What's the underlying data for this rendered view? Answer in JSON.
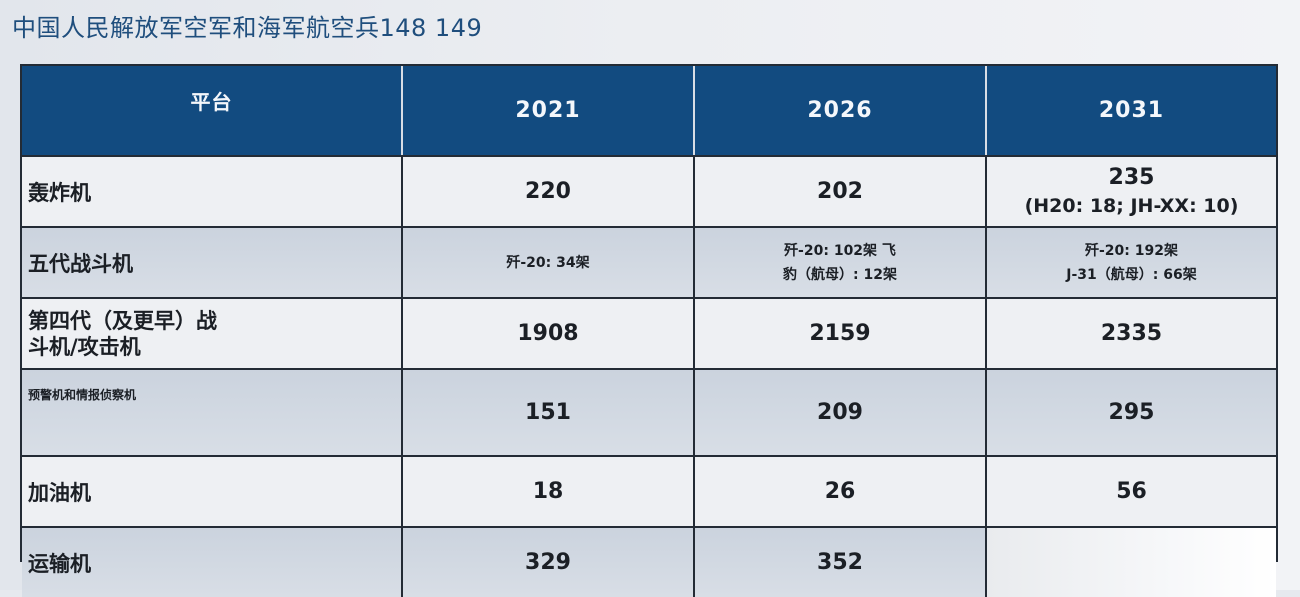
{
  "title": "中国人民解放军空军和海军航空兵148 149",
  "table": {
    "headers": [
      "平台",
      "2021",
      "2026",
      "2031"
    ],
    "rows": [
      {
        "label": "轰炸机",
        "v2021": "220",
        "v2026": "202",
        "v2031_main": "235",
        "v2031_sub": "(H20: 18; JH-XX: 10)"
      },
      {
        "label": "五代战斗机",
        "v2021": "歼-20: 34架",
        "v2026_line1": "歼-20: 102架 飞",
        "v2026_line2": "豹（航母）: 12架",
        "v2031_line1": "歼-20: 192架",
        "v2031_line2": "J-31（航母）: 66架"
      },
      {
        "label_line1": "第四代（及更早）战",
        "label_line2": "斗机/攻击机",
        "v2021": "1908",
        "v2026": "2159",
        "v2031": "2335"
      },
      {
        "label": "预警机和情报侦察机",
        "v2021": "151",
        "v2026": "209",
        "v2031": "295"
      },
      {
        "label": "加油机",
        "v2021": "18",
        "v2026": "26",
        "v2031": "56"
      },
      {
        "label": "运输机",
        "v2021": "329",
        "v2026": "352",
        "v2031": ""
      }
    ]
  },
  "colors": {
    "header_bg": "#124b80",
    "title_color": "#1f4e7d",
    "row_shade": "#cbd3de"
  }
}
